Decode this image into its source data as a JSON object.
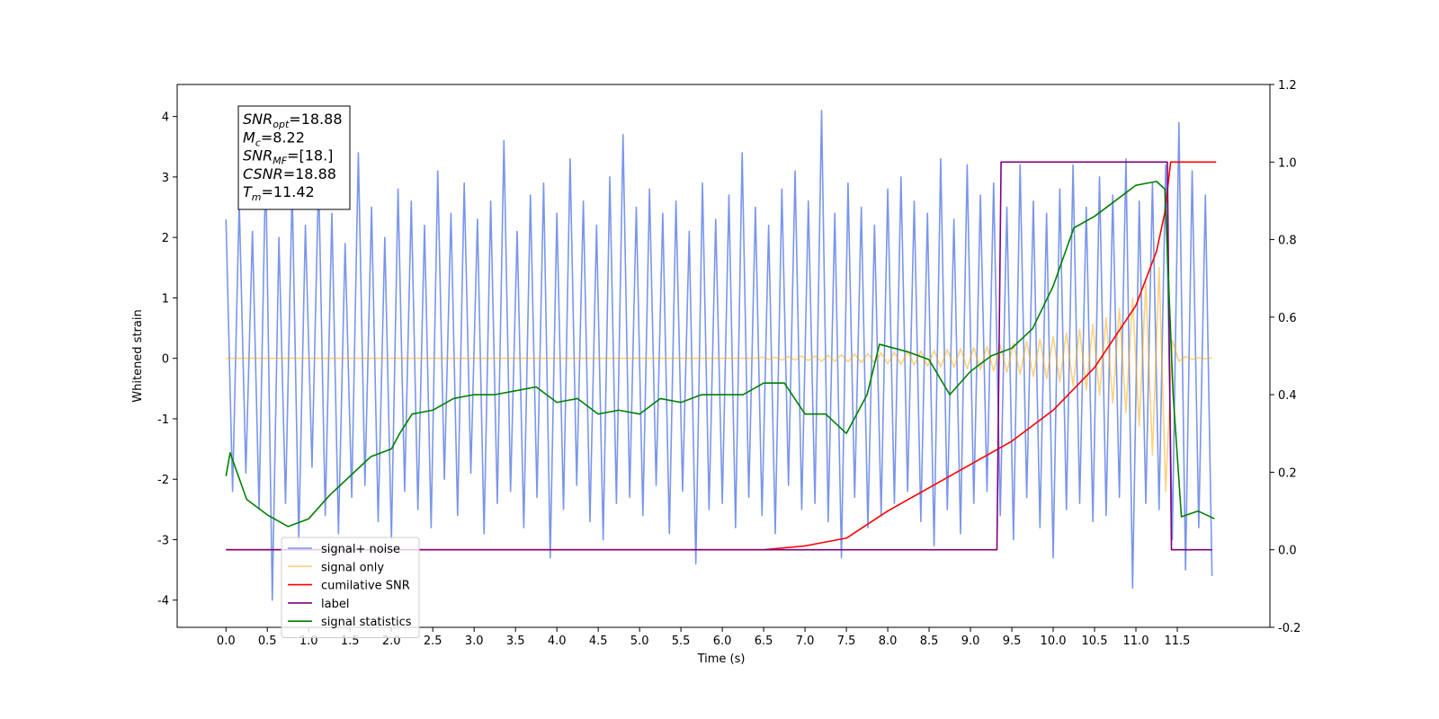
{
  "chart_data": {
    "type": "line",
    "xlabel": "Time (s)",
    "ylabel": "Whitened strain",
    "xlim": [
      -0.59,
      12.62
    ],
    "ylim": [
      -4.45,
      4.53
    ],
    "y2lim": [
      -0.2,
      1.2
    ],
    "xticks": [
      {
        "value": 0,
        "label": "0.0"
      },
      0.5,
      {
        "value": 1,
        "label": "1.0"
      },
      1.5,
      {
        "value": 2,
        "label": "2.0"
      },
      2.5,
      {
        "value": 3,
        "label": "3.0"
      },
      3.5,
      {
        "value": 4,
        "label": "4.0"
      },
      4.5,
      {
        "value": 5,
        "label": "5.0"
      },
      5.5,
      {
        "value": 6,
        "label": "6.0"
      },
      6.5,
      {
        "value": 7,
        "label": "7.0"
      },
      7.5,
      {
        "value": 8,
        "label": "8.0"
      },
      8.5,
      {
        "value": 9,
        "label": "9.0"
      },
      9.5,
      {
        "value": 10,
        "label": "10.0"
      },
      10.5,
      {
        "value": 11,
        "label": "11.0"
      },
      11.5
    ],
    "yticks": [
      -4,
      -3,
      -2,
      -1,
      0,
      1,
      2,
      3,
      4
    ],
    "y2ticks": [
      -0.2,
      {
        "value": 0,
        "label": "0.0"
      },
      0.2,
      0.4,
      0.6,
      0.8,
      {
        "value": 1,
        "label": "1.0"
      },
      1.2
    ],
    "legend": "lower left",
    "annotation": [
      {
        "text": "SNR",
        "sub": "opt",
        "value": "=18.88"
      },
      {
        "text": "M",
        "sub": "c",
        "value": "=8.22"
      },
      {
        "text": "SNR",
        "sub": "MF",
        "value": "=[18.]"
      },
      {
        "text": "CSNR",
        "value": "=18.88"
      },
      {
        "text": "T",
        "sub": "m",
        "value": "=11.42"
      }
    ],
    "x": [
      0,
      0.08,
      0.16,
      0.24,
      0.32,
      0.4,
      0.48,
      0.56,
      0.64,
      0.72,
      0.8,
      0.88,
      0.96,
      1.04,
      1.12,
      1.2,
      1.28,
      1.36,
      1.44,
      1.52,
      1.6,
      1.68,
      1.76,
      1.84,
      1.92,
      2,
      2.08,
      2.16,
      2.24,
      2.32,
      2.4,
      2.48,
      2.56,
      2.64,
      2.72,
      2.8,
      2.88,
      2.96,
      3.04,
      3.12,
      3.2,
      3.28,
      3.36,
      3.44,
      3.52,
      3.6,
      3.68,
      3.76,
      3.84,
      3.92,
      4,
      4.08,
      4.16,
      4.24,
      4.32,
      4.4,
      4.48,
      4.56,
      4.64,
      4.72,
      4.8,
      4.88,
      4.96,
      5.04,
      5.12,
      5.2,
      5.28,
      5.36,
      5.44,
      5.52,
      5.6,
      5.68,
      5.76,
      5.84,
      5.92,
      6,
      6.08,
      6.16,
      6.24,
      6.32,
      6.4,
      6.48,
      6.56,
      6.64,
      6.72,
      6.8,
      6.88,
      6.96,
      7.04,
      7.12,
      7.2,
      7.28,
      7.36,
      7.44,
      7.52,
      7.6,
      7.68,
      7.76,
      7.84,
      7.92,
      8,
      8.08,
      8.16,
      8.24,
      8.32,
      8.4,
      8.48,
      8.56,
      8.64,
      8.72,
      8.8,
      8.88,
      8.96,
      9.04,
      9.12,
      9.2,
      9.28,
      9.36,
      9.44,
      9.52,
      9.6,
      9.68,
      9.76,
      9.84,
      9.92,
      10,
      10.08,
      10.16,
      10.24,
      10.32,
      10.4,
      10.48,
      10.56,
      10.64,
      10.72,
      10.8,
      10.88,
      10.96,
      11.04,
      11.12,
      11.2,
      11.28,
      11.36,
      11.44,
      11.52,
      11.6,
      11.68,
      11.76,
      11.84,
      11.92
    ],
    "series": [
      {
        "name": "signal+ noise",
        "color": "#4169e1",
        "alpha": 0.7,
        "values": [
          2.3,
          -2.2,
          2.6,
          -1.9,
          2.1,
          -2.5,
          3.2,
          -4.0,
          2.0,
          -2.4,
          2.8,
          -3.0,
          2.2,
          -1.8,
          3.0,
          -2.6,
          2.4,
          -2.9,
          1.9,
          -2.3,
          3.4,
          -2.1,
          2.5,
          -2.7,
          2.0,
          -3.0,
          2.8,
          -2.2,
          2.6,
          -2.5,
          2.2,
          -2.8,
          3.1,
          -2.0,
          2.4,
          -2.6,
          2.9,
          -1.9,
          2.3,
          -2.9,
          2.6,
          -2.4,
          3.6,
          -2.2,
          2.1,
          -2.8,
          2.7,
          -2.3,
          2.9,
          -3.3,
          2.4,
          -2.5,
          3.3,
          -2.1,
          2.6,
          -2.7,
          2.2,
          -3.0,
          3.0,
          -2.4,
          3.7,
          -2.3,
          2.5,
          -2.6,
          2.8,
          -2.1,
          2.4,
          -2.9,
          2.6,
          -2.2,
          2.1,
          -3.4,
          2.9,
          -2.5,
          2.3,
          -2.4,
          2.7,
          -2.8,
          3.4,
          -2.3,
          2.5,
          -2.6,
          2.2,
          -2.9,
          2.8,
          -2.1,
          3.1,
          -2.5,
          2.6,
          -2.4,
          4.1,
          -2.7,
          2.4,
          -3.3,
          2.9,
          -2.3,
          2.5,
          -2.8,
          2.2,
          -2.6,
          2.8,
          -2.4,
          3.0,
          -2.2,
          2.6,
          -2.7,
          2.4,
          -3.1,
          3.3,
          -2.5,
          2.3,
          -2.9,
          3.2,
          -2.4,
          2.7,
          -2.2,
          2.9,
          -2.6,
          2.5,
          -3.0,
          3.2,
          -2.3,
          2.6,
          -2.8,
          2.4,
          -3.3,
          2.8,
          -2.5,
          3.2,
          -2.4,
          2.5,
          -2.7,
          3.0,
          -2.6,
          2.7,
          -2.3,
          3.3,
          -3.8,
          2.6,
          -2.4,
          2.9,
          -2.5,
          3.2,
          -3.0,
          3.9,
          -3.5,
          3.1,
          -2.8,
          2.7,
          -3.6
        ]
      },
      {
        "name": "signal only",
        "color": "#ffa500",
        "alpha": 0.5,
        "values": [
          0,
          0,
          0,
          0,
          0,
          0,
          0,
          0,
          0,
          0,
          0,
          0,
          0,
          0,
          0,
          0,
          0,
          0,
          0,
          0,
          0,
          0,
          0,
          0,
          0,
          0,
          0,
          0,
          0,
          0,
          0,
          0,
          0,
          0,
          0,
          0,
          0,
          0,
          0,
          0,
          0,
          0,
          0,
          0,
          0,
          0,
          0,
          0,
          0,
          0,
          0,
          0,
          0,
          0,
          0,
          0,
          0,
          0,
          0,
          0,
          0,
          0,
          0,
          0,
          0,
          0,
          0,
          0,
          0,
          0,
          0,
          0,
          0,
          0,
          0,
          0,
          0,
          0,
          0,
          0,
          0,
          0.02,
          -0.02,
          0.02,
          -0.03,
          0.03,
          -0.03,
          0.04,
          -0.04,
          0.04,
          -0.05,
          0.05,
          -0.05,
          0.06,
          -0.06,
          0.07,
          -0.07,
          0.08,
          -0.08,
          0.09,
          -0.09,
          0.1,
          -0.1,
          0.11,
          -0.11,
          0.12,
          -0.13,
          0.13,
          -0.14,
          0.15,
          -0.15,
          0.16,
          -0.17,
          0.18,
          -0.19,
          0.2,
          -0.21,
          0.22,
          -0.23,
          0.25,
          -0.26,
          0.28,
          -0.3,
          0.32,
          -0.34,
          0.36,
          -0.39,
          0.42,
          -0.45,
          0.48,
          -0.52,
          0.56,
          -0.61,
          0.67,
          -0.74,
          0.82,
          -0.9,
          1.0,
          -1.12,
          1.25,
          -1.6,
          1.5,
          -2.2,
          0.3,
          -0.05,
          0.03,
          -0.02,
          0.01,
          -0.01,
          0.01
        ]
      },
      {
        "name": "cumilative SNR",
        "color": "#ff0000",
        "axis": "y2",
        "x": [
          0,
          6.5,
          7.0,
          7.5,
          8.0,
          8.5,
          9.0,
          9.5,
          10.0,
          10.5,
          11.0,
          11.25,
          11.35,
          11.42,
          11.97
        ],
        "values": [
          0,
          0,
          0.01,
          0.03,
          0.1,
          0.16,
          0.22,
          0.28,
          0.36,
          0.47,
          0.63,
          0.77,
          0.87,
          1.0,
          1.0
        ]
      },
      {
        "name": "label",
        "color": "#800080",
        "axis": "y2",
        "x": [
          0,
          9.32,
          9.37,
          11.38,
          11.43,
          11.92
        ],
        "values": [
          0,
          0,
          1,
          1,
          0,
          0
        ]
      },
      {
        "name": "signal statistics",
        "color": "#008000",
        "axis": "y2",
        "x": [
          0,
          0.05,
          0.25,
          0.5,
          0.75,
          1,
          1.25,
          1.5,
          1.75,
          2,
          2.1,
          2.25,
          2.5,
          2.75,
          3,
          3.25,
          3.5,
          3.75,
          4,
          4.25,
          4.5,
          4.75,
          5,
          5.25,
          5.5,
          5.75,
          6,
          6.25,
          6.5,
          6.75,
          7,
          7.25,
          7.5,
          7.75,
          7.9,
          8.25,
          8.5,
          8.75,
          9,
          9.25,
          9.5,
          9.75,
          10,
          10.25,
          10.5,
          10.75,
          11,
          11.25,
          11.35,
          11.45,
          11.55,
          11.75,
          11.95
        ],
        "values": [
          0.19,
          0.25,
          0.13,
          0.09,
          0.06,
          0.08,
          0.14,
          0.19,
          0.24,
          0.26,
          0.3,
          0.35,
          0.36,
          0.39,
          0.4,
          0.4,
          0.41,
          0.42,
          0.38,
          0.39,
          0.35,
          0.36,
          0.35,
          0.39,
          0.38,
          0.4,
          0.4,
          0.4,
          0.43,
          0.43,
          0.35,
          0.35,
          0.3,
          0.4,
          0.53,
          0.51,
          0.49,
          0.4,
          0.46,
          0.5,
          0.52,
          0.57,
          0.68,
          0.83,
          0.86,
          0.9,
          0.94,
          0.95,
          0.93,
          0.4,
          0.085,
          0.1,
          0.08
        ]
      }
    ]
  }
}
